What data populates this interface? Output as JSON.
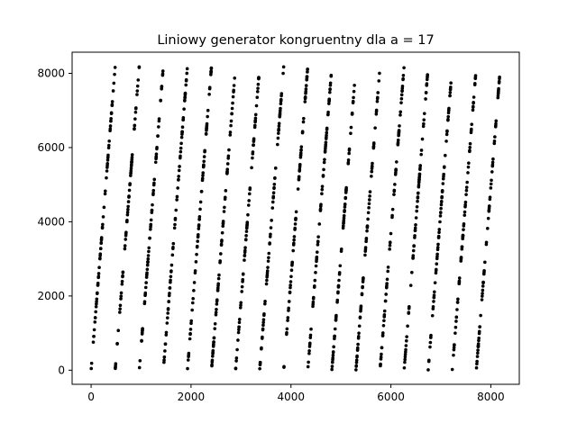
{
  "chart_data": {
    "type": "scatter",
    "title": "Liniowy generator kongruentny dla a = 17",
    "xlabel": "",
    "ylabel": "",
    "xlim": [
      -380,
      8570
    ],
    "ylim": [
      -380,
      8570
    ],
    "xticks": [
      0,
      2000,
      4000,
      6000,
      8000
    ],
    "yticks": [
      0,
      2000,
      4000,
      6000,
      8000
    ],
    "xtick_labels": [
      "0",
      "2000",
      "4000",
      "6000",
      "8000"
    ],
    "ytick_labels": [
      "0",
      "2000",
      "4000",
      "6000",
      "8000"
    ],
    "grid": false,
    "legend": "none",
    "marker_color": "#000000",
    "generator": {
      "a": 17,
      "m": 8192,
      "slope_per_step": 17,
      "strips": 17
    },
    "series": [
      {
        "strips": [
          {
            "x_start": 0,
            "x_end": 482
          },
          {
            "x_start": 482,
            "x_end": 964
          },
          {
            "x_start": 964,
            "x_end": 1446
          },
          {
            "x_start": 1446,
            "x_end": 1928
          },
          {
            "x_start": 1928,
            "x_end": 2410
          },
          {
            "x_start": 2410,
            "x_end": 2891
          },
          {
            "x_start": 2891,
            "x_end": 3373
          },
          {
            "x_start": 3373,
            "x_end": 3855
          },
          {
            "x_start": 3855,
            "x_end": 4337
          },
          {
            "x_start": 4337,
            "x_end": 4819
          },
          {
            "x_start": 4819,
            "x_end": 5301
          },
          {
            "x_start": 5301,
            "x_end": 5782
          },
          {
            "x_start": 5782,
            "x_end": 6264
          },
          {
            "x_start": 6264,
            "x_end": 6746
          },
          {
            "x_start": 6746,
            "x_end": 7228
          },
          {
            "x_start": 7228,
            "x_end": 7710
          },
          {
            "x_start": 7710,
            "x_end": 8192
          }
        ]
      }
    ]
  }
}
